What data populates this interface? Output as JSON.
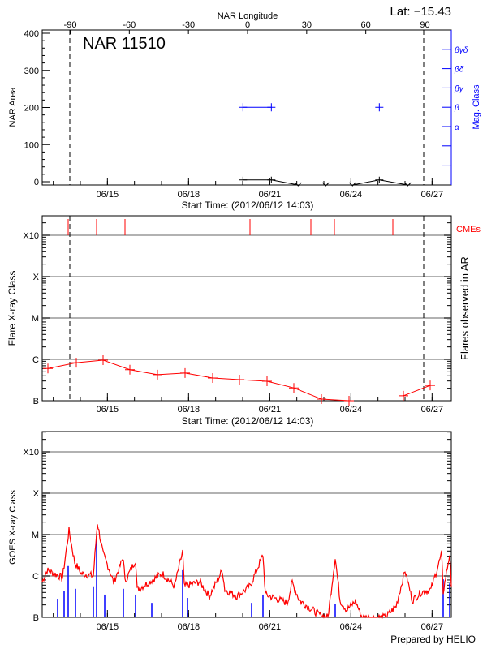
{
  "colors": {
    "axis": "#000000",
    "grid": "#999999",
    "flare": "#ff0000",
    "mag": "#0000ff",
    "goes_long": "#ff0000",
    "goes_short": "#0000ff"
  },
  "chart_data": [
    {
      "type": "line",
      "name": "nar-area-panel",
      "title": "NAR 11510",
      "corner_label": "Lat: −15.43",
      "top_axis_label": "NAR Longitude",
      "top_ticks": [
        "-90",
        "-60",
        "-30",
        "0",
        "30",
        "60",
        "90"
      ],
      "top_tick_values": [
        -90,
        -60,
        -30,
        0,
        30,
        60,
        90
      ],
      "xlabel": "Start Time: (2012/06/12 14:03)",
      "x_units": "days since 2012/06/12 14:03",
      "x_range": [
        0,
        15.12
      ],
      "x_ticks": [
        {
          "label": "06/15",
          "day": 2.41
        },
        {
          "label": "06/18",
          "day": 5.41
        },
        {
          "label": "06/21",
          "day": 8.41
        },
        {
          "label": "06/24",
          "day": 11.41
        },
        {
          "label": "06/27",
          "day": 14.41
        }
      ],
      "ylabel": "NAR Area",
      "ylim": [
        0,
        400
      ],
      "y_ticks": [
        "0",
        "100",
        "200",
        "300",
        "400"
      ],
      "y_tick_values": [
        0,
        100,
        200,
        300,
        400
      ],
      "right_ylabel": "Mag. Class",
      "mag_classes": [
        "α",
        "β",
        "βγ",
        "βδ",
        "βγδ"
      ],
      "limb_lines_days": [
        1.02,
        14.1
      ],
      "area_series": {
        "x": [
          7.42,
          8.47,
          9.46,
          10.48,
          11.47,
          12.46,
          13.51
        ],
        "y": [
          5,
          5,
          0,
          0,
          0,
          5,
          0
        ],
        "below_marker": [
          false,
          false,
          true,
          true,
          true,
          false,
          true
        ]
      },
      "mag_series": {
        "x": [
          7.42,
          8.47,
          12.46
        ],
        "class": [
          "β",
          "β",
          "β"
        ],
        "connected": [
          [
            0,
            1
          ]
        ]
      }
    },
    {
      "type": "line",
      "name": "flare-panel",
      "xlabel": "Start Time: (2012/06/12 14:03)",
      "ylabel": "Flare X-ray Class",
      "right_ylabel": "Flares observed in AR",
      "cme_label": "CMEs",
      "y_scale": "log class (B=0, C=1, M=2, X=3, X10=4)",
      "y_ticks": [
        "B",
        "C",
        "M",
        "X",
        "X10"
      ],
      "y_tick_values": [
        0,
        1,
        2,
        3,
        4
      ],
      "cme_days": [
        0.96,
        2.01,
        3.06,
        7.68,
        9.93,
        10.8,
        12.96
      ],
      "flares": {
        "x": [
          0.21,
          1.26,
          2.25,
          3.24,
          4.26,
          5.28,
          6.3,
          7.29,
          8.31,
          9.3,
          10.32,
          11.34,
          13.35,
          14.34
        ],
        "y": [
          0.78,
          0.92,
          0.98,
          0.75,
          0.63,
          0.67,
          0.55,
          0.51,
          0.47,
          0.31,
          0.04,
          0.0,
          0.12,
          0.37
        ],
        "segments": [
          [
            0,
            11
          ],
          [
            12,
            13
          ]
        ]
      }
    },
    {
      "type": "line",
      "name": "goes-panel",
      "ylabel": "GOES X-ray Class",
      "footer": "Prepared by HELIO",
      "y_ticks": [
        "B",
        "C",
        "M",
        "X",
        "X10"
      ],
      "y_tick_values": [
        0,
        1,
        2,
        3,
        4
      ],
      "long_channel": {
        "x": [
          0,
          0.18,
          0.75,
          0.99,
          1.2,
          1.44,
          1.89,
          2.04,
          2.25,
          2.49,
          2.64,
          3.0,
          3.06,
          3.45,
          3.51,
          4.44,
          4.89,
          5.19,
          5.25,
          5.82,
          6.18,
          6.66,
          6.75,
          7.2,
          7.68,
          8.16,
          8.25,
          9.06,
          9.24,
          9.51,
          10.2,
          10.56,
          10.83,
          11.01,
          11.25,
          11.58,
          11.82,
          12.69,
          13.08,
          13.41,
          13.68,
          14.01,
          14.37,
          14.76,
          14.82,
          15.06,
          15.12
        ],
        "y": [
          0.86,
          1.14,
          0.96,
          2.1,
          1.33,
          1.06,
          1.0,
          2.29,
          1.53,
          1.14,
          0.84,
          1.45,
          0.86,
          1.39,
          0.67,
          1.06,
          0.75,
          1.59,
          0.75,
          0.86,
          0.51,
          1.14,
          0.67,
          0.51,
          0.75,
          1.51,
          0.55,
          0.35,
          0.84,
          0.41,
          0.08,
          0.0,
          1.45,
          0.41,
          0.18,
          0.39,
          0.0,
          0.0,
          0.27,
          1.14,
          0.41,
          0.61,
          0.67,
          1.53,
          0.61,
          1.53,
          0.75
        ]
      },
      "short_channel": {
        "x": [
          0.57,
          0.81,
          0.96,
          1.23,
          1.89,
          2.01,
          2.31,
          3.0,
          3.45,
          4.05,
          5.19,
          5.37,
          7.74,
          8.16,
          10.83,
          14.82,
          15.06
        ],
        "y": [
          0.45,
          0.63,
          1.24,
          0.69,
          0.75,
          1.96,
          0.55,
          0.69,
          0.55,
          0.35,
          1.14,
          0.47,
          0.35,
          0.55,
          0.33,
          0.92,
          0.82
        ]
      }
    }
  ]
}
